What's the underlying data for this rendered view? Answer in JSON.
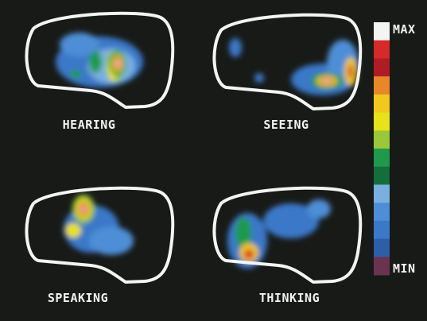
{
  "panels": [
    {
      "label": "HEARING"
    },
    {
      "label": "SEEING"
    },
    {
      "label": "SPEAKING"
    },
    {
      "label": "THINKING"
    }
  ],
  "scale": {
    "max": "MAX",
    "min": "MIN",
    "colors": [
      "#f4f4f4",
      "#d42a2a",
      "#b01c24",
      "#e8862a",
      "#f0c81e",
      "#e8e21a",
      "#9ac83a",
      "#1f9a4a",
      "#146e3c",
      "#7ab0e0",
      "#4d8ed6",
      "#3a78c8",
      "#2d5ea8",
      "#6a3450"
    ]
  }
}
